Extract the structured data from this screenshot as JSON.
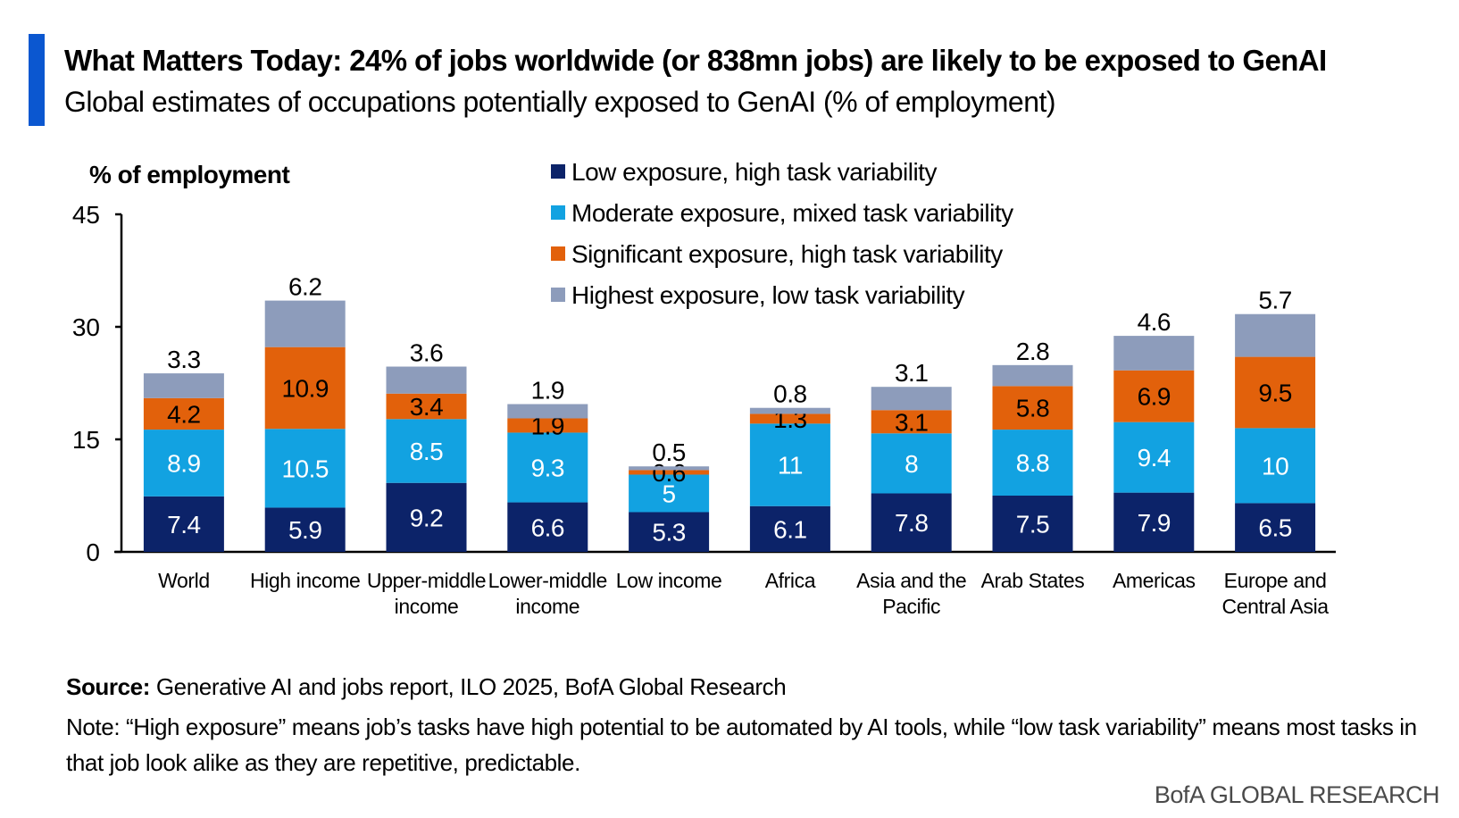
{
  "header": {
    "title": "What Matters Today: 24% of jobs worldwide (or 838mn jobs) are likely to be exposed to GenAI",
    "subtitle": "Global estimates of occupations potentially exposed to GenAI (% of employment)"
  },
  "colors": {
    "accent": "#0b57d0",
    "series": [
      "#0c2369",
      "#12a2e1",
      "#e2610b",
      "#8d9cbb"
    ]
  },
  "chart_data": {
    "type": "bar",
    "stacked": true,
    "ylabel": "% of employment",
    "ylim": [
      0,
      45
    ],
    "yticks": [
      "0",
      "15",
      "30",
      "45"
    ],
    "grid": false,
    "legend": "top-center",
    "categories": [
      [
        "World"
      ],
      [
        "High income"
      ],
      [
        "Upper-middle",
        "income"
      ],
      [
        "Lower-middle",
        "income"
      ],
      [
        "Low income"
      ],
      [
        "Africa"
      ],
      [
        "Asia and the",
        "Pacific"
      ],
      [
        "Arab States"
      ],
      [
        "Americas"
      ],
      [
        "Europe and",
        "Central Asia"
      ]
    ],
    "series": [
      {
        "name": "Low exposure, high task variability",
        "values": [
          7.4,
          5.9,
          9.2,
          6.6,
          5.3,
          6.1,
          7.8,
          7.5,
          7.9,
          6.5
        ]
      },
      {
        "name": "Moderate exposure, mixed task variability",
        "values": [
          8.9,
          10.5,
          8.5,
          9.3,
          5,
          11,
          8,
          8.8,
          9.4,
          10
        ]
      },
      {
        "name": "Significant exposure, high task variability",
        "values": [
          4.2,
          10.9,
          3.4,
          1.9,
          0.6,
          1.3,
          3.1,
          5.8,
          6.9,
          9.5
        ]
      },
      {
        "name": "Highest exposure, low task variability",
        "values": [
          3.3,
          6.2,
          3.6,
          1.9,
          0.5,
          0.8,
          3.1,
          2.8,
          4.6,
          5.7
        ]
      }
    ]
  },
  "footer": {
    "source_label": "Source:",
    "source_text": " Generative AI and jobs report, ILO 2025, BofA Global Research",
    "note": "Note: “High exposure” means job’s tasks have high potential to be automated by AI tools, while “low task variability” means most tasks in that job look alike as they are repetitive, predictable.",
    "brand": "BofA GLOBAL RESEARCH"
  }
}
